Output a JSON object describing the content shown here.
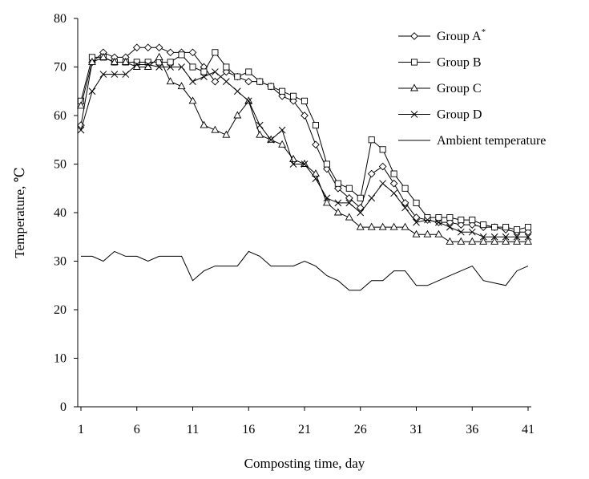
{
  "chart_data": {
    "type": "line",
    "xlabel": "Composting time, day",
    "ylabel": "Temperature, ℃",
    "xlim": [
      1,
      41
    ],
    "ylim": [
      0,
      80
    ],
    "xticks": [
      1,
      6,
      11,
      16,
      21,
      26,
      31,
      36,
      41
    ],
    "yticks": [
      0,
      10,
      20,
      30,
      40,
      50,
      60,
      70,
      80
    ],
    "grid": false,
    "legend_position": "top-right",
    "series": [
      {
        "name": "Group A",
        "name_superscript": "*",
        "marker": "diamond",
        "x": [
          1,
          2,
          3,
          4,
          5,
          6,
          7,
          8,
          9,
          10,
          11,
          12,
          13,
          14,
          15,
          16,
          17,
          18,
          19,
          20,
          21,
          22,
          23,
          24,
          25,
          26,
          27,
          28,
          29,
          30,
          31,
          32,
          33,
          34,
          35,
          36,
          37,
          38,
          39,
          40,
          41
        ],
        "values": [
          58,
          71,
          73,
          72,
          72,
          74,
          74,
          74,
          73,
          73,
          73,
          70,
          67,
          69,
          68,
          67,
          67,
          66,
          64,
          63,
          60,
          54,
          49,
          45,
          43,
          41,
          48,
          49.5,
          46,
          42,
          39,
          38.5,
          38,
          38,
          37.5,
          37.5,
          37,
          37,
          36.5,
          36,
          36
        ]
      },
      {
        "name": "Group B",
        "marker": "square",
        "x": [
          1,
          2,
          3,
          4,
          5,
          6,
          7,
          8,
          9,
          10,
          11,
          12,
          13,
          14,
          15,
          16,
          17,
          18,
          19,
          20,
          21,
          22,
          23,
          24,
          25,
          26,
          27,
          28,
          29,
          30,
          31,
          32,
          33,
          34,
          35,
          36,
          37,
          38,
          39,
          40,
          41
        ],
        "values": [
          63,
          72,
          72,
          71,
          71,
          71,
          71,
          71,
          71,
          72.5,
          70,
          69,
          73,
          70,
          68,
          69,
          67,
          66,
          65,
          64,
          63,
          58,
          50,
          46,
          45,
          43,
          55,
          53,
          48,
          45,
          42,
          39,
          39,
          39,
          38.5,
          38.5,
          37.5,
          37,
          37,
          36.5,
          37
        ]
      },
      {
        "name": "Group C",
        "marker": "triangle",
        "x": [
          1,
          2,
          3,
          4,
          5,
          6,
          7,
          8,
          9,
          10,
          11,
          12,
          13,
          14,
          15,
          16,
          17,
          18,
          19,
          20,
          21,
          22,
          23,
          24,
          25,
          26,
          27,
          28,
          29,
          30,
          31,
          32,
          33,
          34,
          35,
          36,
          37,
          38,
          39,
          40,
          41
        ],
        "values": [
          62,
          71,
          72,
          71,
          71,
          70,
          70,
          72,
          67,
          66,
          63,
          58,
          57,
          56,
          60,
          63,
          56,
          55,
          54,
          51,
          50,
          48,
          42,
          40,
          39,
          37,
          37,
          37,
          37,
          37,
          35.5,
          35.5,
          35.5,
          34,
          34,
          34,
          34,
          34,
          34,
          34,
          34
        ]
      },
      {
        "name": "Group D",
        "marker": "x",
        "x": [
          1,
          2,
          3,
          4,
          5,
          6,
          7,
          8,
          9,
          10,
          11,
          12,
          13,
          14,
          15,
          16,
          17,
          18,
          19,
          20,
          21,
          22,
          23,
          24,
          25,
          26,
          27,
          28,
          29,
          30,
          31,
          32,
          33,
          34,
          35,
          36,
          37,
          38,
          39,
          40,
          41
        ],
        "values": [
          57,
          65,
          68.5,
          68.5,
          68.5,
          70.5,
          70.5,
          70,
          70,
          70,
          67,
          68,
          69,
          67,
          65,
          63,
          58,
          55,
          57,
          50,
          50,
          47,
          43,
          42,
          42,
          40,
          43,
          46,
          44,
          41,
          38,
          38.5,
          38,
          37,
          36,
          36,
          35,
          35,
          35,
          35,
          35
        ]
      },
      {
        "name": "Ambient temperature",
        "marker": "none",
        "x": [
          1,
          2,
          3,
          4,
          5,
          6,
          7,
          8,
          9,
          10,
          11,
          12,
          13,
          14,
          15,
          16,
          17,
          18,
          19,
          20,
          21,
          22,
          23,
          24,
          25,
          26,
          27,
          28,
          29,
          30,
          31,
          32,
          33,
          34,
          35,
          36,
          37,
          38,
          39,
          40,
          41
        ],
        "values": [
          31,
          31,
          30,
          32,
          31,
          31,
          30,
          31,
          31,
          31,
          26,
          28,
          29,
          29,
          29,
          32,
          31,
          29,
          29,
          29,
          30,
          29,
          27,
          26,
          24,
          24,
          26,
          26,
          28,
          28,
          25,
          25,
          26,
          27,
          28,
          29,
          26,
          25.5,
          25,
          28,
          29
        ]
      }
    ]
  }
}
